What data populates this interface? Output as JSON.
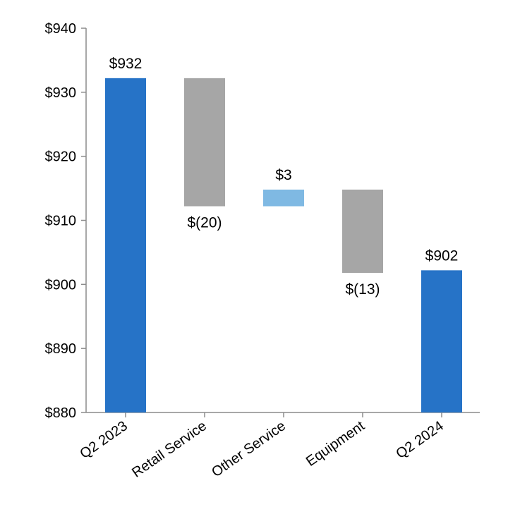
{
  "chart_data": {
    "type": "waterfall",
    "title": "",
    "xlabel": "",
    "ylabel": "",
    "ylim": [
      880,
      940
    ],
    "yticks": [
      880,
      890,
      900,
      910,
      920,
      930,
      940
    ],
    "ytick_labels": [
      "$880",
      "$890",
      "$900",
      "$910",
      "$920",
      "$930",
      "$940"
    ],
    "grid": false,
    "legend": "none",
    "categories": [
      "Q2 2023",
      "Retail Service",
      "Other Service",
      "Equipment",
      "Q2 2024"
    ],
    "bars": [
      {
        "category": "Q2 2023",
        "kind": "total",
        "start": 880,
        "end": 932.2,
        "value": 932,
        "label": "$932",
        "label_position": "above",
        "color": "#2673c7"
      },
      {
        "category": "Retail Service",
        "kind": "decrease",
        "start": 932.2,
        "end": 912.2,
        "value": -20,
        "label": "$(20)",
        "label_position": "below",
        "color": "#a6a6a6"
      },
      {
        "category": "Other Service",
        "kind": "increase",
        "start": 912.2,
        "end": 914.8,
        "value": 3,
        "label": "$3",
        "label_position": "above",
        "color": "#7fb9e3"
      },
      {
        "category": "Equipment",
        "kind": "decrease",
        "start": 914.8,
        "end": 901.8,
        "value": -13,
        "label": "$(13)",
        "label_position": "below",
        "color": "#a6a6a6"
      },
      {
        "category": "Q2 2024",
        "kind": "total",
        "start": 880,
        "end": 902.2,
        "value": 902,
        "label": "$902",
        "label_position": "above",
        "color": "#2673c7"
      }
    ],
    "colors": {
      "total": "#2673c7",
      "decrease": "#a6a6a6",
      "increase": "#7fb9e3",
      "axis": "#8c8c8c"
    }
  }
}
